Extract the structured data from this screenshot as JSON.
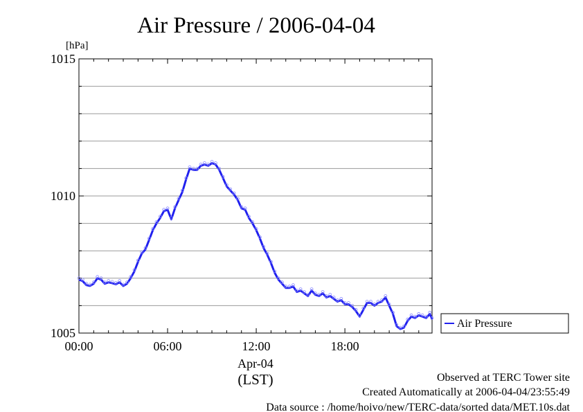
{
  "chart_data": {
    "type": "line",
    "title": "Air Pressure / 2006-04-04",
    "ylabel": "[hPa]",
    "ylim": [
      1005,
      1015
    ],
    "yticks": [
      "1015",
      "1010",
      "1005"
    ],
    "xlim": [
      0,
      23.9
    ],
    "xticks": [
      {
        "at": 0,
        "label": "00:00"
      },
      {
        "at": 6,
        "label": "06:00"
      },
      {
        "at": 12,
        "label": "12:00"
      },
      {
        "at": 18,
        "label": "18:00"
      }
    ],
    "x_date_label": "Apr-04",
    "x_timezone_label": "(LST)",
    "grid": true,
    "legend_position": "right",
    "series": [
      {
        "name": "Air Pressure",
        "color": "#2020ee",
        "x": [
          0.0,
          0.25,
          0.5,
          0.75,
          1.0,
          1.25,
          1.5,
          1.75,
          2.0,
          2.25,
          2.5,
          2.75,
          3.0,
          3.25,
          3.5,
          3.75,
          4.0,
          4.25,
          4.5,
          4.75,
          5.0,
          5.25,
          5.5,
          5.75,
          6.0,
          6.25,
          6.5,
          6.75,
          7.0,
          7.25,
          7.5,
          7.75,
          8.0,
          8.25,
          8.5,
          8.75,
          9.0,
          9.25,
          9.5,
          9.75,
          10.0,
          10.25,
          10.5,
          10.75,
          11.0,
          11.25,
          11.5,
          11.75,
          12.0,
          12.25,
          12.5,
          12.75,
          13.0,
          13.25,
          13.5,
          13.75,
          14.0,
          14.25,
          14.5,
          14.75,
          15.0,
          15.25,
          15.5,
          15.75,
          16.0,
          16.25,
          16.5,
          16.75,
          17.0,
          17.25,
          17.5,
          17.75,
          18.0,
          18.25,
          18.5,
          18.75,
          19.0,
          19.25,
          19.5,
          19.75,
          20.0,
          20.25,
          20.5,
          20.75,
          21.0,
          21.25,
          21.5,
          21.75,
          22.0,
          22.25,
          22.5,
          22.75,
          23.0,
          23.25,
          23.5,
          23.75,
          23.9
        ],
        "values": [
          1006.95,
          1006.9,
          1006.75,
          1006.72,
          1006.8,
          1007.0,
          1006.95,
          1006.8,
          1006.85,
          1006.82,
          1006.78,
          1006.85,
          1006.72,
          1006.8,
          1007.0,
          1007.25,
          1007.6,
          1007.9,
          1008.05,
          1008.4,
          1008.75,
          1009.0,
          1009.2,
          1009.45,
          1009.5,
          1009.15,
          1009.55,
          1009.85,
          1010.15,
          1010.6,
          1011.0,
          1010.95,
          1010.95,
          1011.1,
          1011.15,
          1011.1,
          1011.2,
          1011.15,
          1010.95,
          1010.65,
          1010.35,
          1010.2,
          1010.05,
          1009.85,
          1009.55,
          1009.5,
          1009.2,
          1009.0,
          1008.75,
          1008.45,
          1008.1,
          1007.85,
          1007.55,
          1007.2,
          1006.95,
          1006.8,
          1006.65,
          1006.65,
          1006.7,
          1006.5,
          1006.55,
          1006.45,
          1006.35,
          1006.55,
          1006.4,
          1006.35,
          1006.45,
          1006.3,
          1006.35,
          1006.25,
          1006.15,
          1006.2,
          1006.05,
          1006.05,
          1005.95,
          1005.8,
          1005.6,
          1005.85,
          1006.1,
          1006.1,
          1006.0,
          1006.1,
          1006.15,
          1006.3,
          1006.0,
          1005.7,
          1005.25,
          1005.15,
          1005.2,
          1005.45,
          1005.6,
          1005.55,
          1005.65,
          1005.6,
          1005.55,
          1005.7,
          1005.5
        ]
      }
    ]
  },
  "footer": {
    "line1": "Observed at TERC Tower site",
    "line2": "Created Automatically at 2006-04-04/23:55:49",
    "line3": "Data source : /home/hoivo/new/TERC-data/sorted  data/MET.10s.dat"
  }
}
